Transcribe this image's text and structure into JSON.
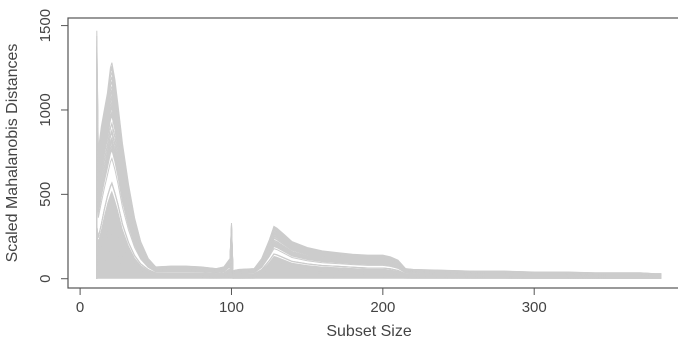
{
  "chart_data": {
    "type": "line",
    "title": "",
    "xlabel": "Subset Size",
    "ylabel": "Scaled Mahalanobis Distances",
    "xlim": [
      -8,
      395
    ],
    "ylim": [
      -55,
      1545
    ],
    "x_ticks": [
      0,
      100,
      200,
      300
    ],
    "x_tick_labels": [
      "0",
      "100",
      "200",
      "300"
    ],
    "y_ticks": [
      0,
      500,
      1000,
      1500
    ],
    "y_tick_labels": [
      "0",
      "500",
      "1000",
      "1500"
    ],
    "grid": false,
    "legend": "none",
    "line_color": "#cccccc",
    "series_count": 60,
    "envelope_upper": {
      "x": [
        11,
        12,
        14,
        16,
        18,
        20,
        21,
        23,
        25,
        28,
        32,
        36,
        40,
        45,
        50,
        60,
        70,
        80,
        90,
        95,
        99,
        100,
        101,
        102,
        105,
        115,
        120,
        125,
        128,
        130,
        135,
        140,
        150,
        160,
        170,
        180,
        190,
        200,
        205,
        210,
        215,
        220,
        240,
        260,
        280,
        300,
        320,
        340,
        360,
        370,
        380,
        384
      ],
      "y": [
        1470,
        760,
        900,
        1000,
        1100,
        1250,
        1280,
        1180,
        1030,
        800,
        560,
        360,
        220,
        120,
        70,
        75,
        75,
        70,
        60,
        70,
        120,
        330,
        45,
        50,
        55,
        60,
        120,
        230,
        310,
        300,
        260,
        220,
        185,
        165,
        155,
        145,
        140,
        140,
        130,
        110,
        60,
        55,
        50,
        45,
        45,
        40,
        40,
        35,
        35,
        35,
        30,
        30
      ]
    },
    "envelope_median": {
      "x": [
        11,
        12,
        14,
        16,
        18,
        20,
        21,
        23,
        25,
        28,
        32,
        36,
        40,
        45,
        50,
        60,
        70,
        80,
        90,
        95,
        99,
        100,
        101,
        102,
        105,
        115,
        120,
        125,
        128,
        130,
        135,
        140,
        150,
        160,
        170,
        180,
        190,
        200,
        205,
        210,
        215,
        220,
        240,
        260,
        280,
        300,
        320,
        340,
        360,
        370,
        380,
        384
      ],
      "y": [
        320,
        250,
        330,
        420,
        500,
        560,
        580,
        520,
        450,
        330,
        220,
        140,
        90,
        55,
        35,
        35,
        35,
        35,
        30,
        35,
        60,
        140,
        20,
        25,
        28,
        30,
        55,
        110,
        150,
        145,
        125,
        105,
        90,
        80,
        75,
        70,
        65,
        65,
        60,
        50,
        30,
        28,
        25,
        22,
        20,
        18,
        18,
        16,
        15,
        15,
        14,
        14
      ]
    }
  }
}
